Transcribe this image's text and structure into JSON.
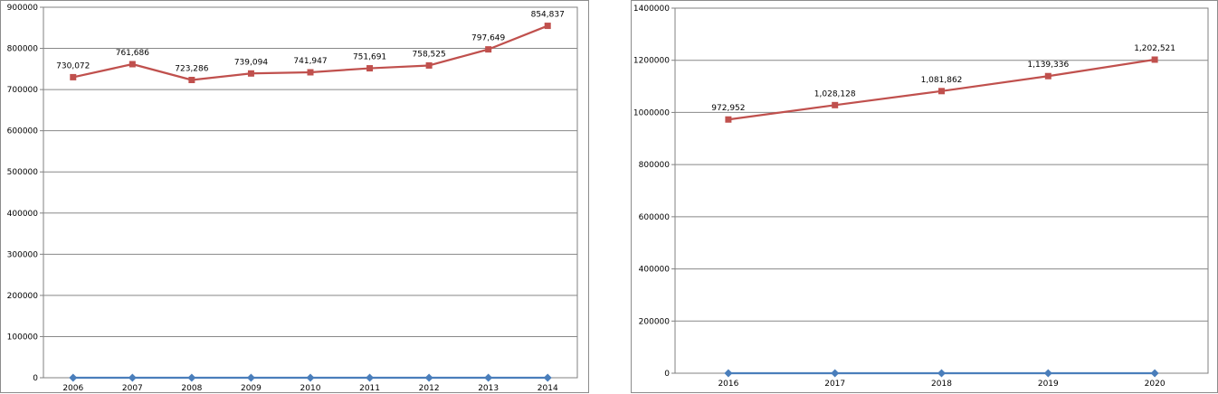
{
  "chart_data": [
    {
      "type": "line",
      "categories": [
        "2006",
        "2007",
        "2008",
        "2009",
        "2010",
        "2011",
        "2012",
        "2013",
        "2014"
      ],
      "ylim": [
        0,
        900000
      ],
      "yticks": [
        "0",
        "100000",
        "200000",
        "300000",
        "400000",
        "500000",
        "600000",
        "700000",
        "800000",
        "900000"
      ],
      "grid": true,
      "series": [
        {
          "color": "#c0504d",
          "marker": "square",
          "values": [
            730072,
            761686,
            723286,
            739094,
            741947,
            751691,
            758525,
            797649,
            854837
          ],
          "labels": [
            "730,072",
            "761,686",
            "723,286",
            "739,094",
            "741,947",
            "751,691",
            "758,525",
            "797,649",
            "854,837"
          ]
        },
        {
          "color": "#4a7ebb",
          "marker": "diamond",
          "values": [
            0,
            0,
            0,
            0,
            0,
            0,
            0,
            0,
            0
          ]
        }
      ]
    },
    {
      "type": "line",
      "categories": [
        "2016",
        "2017",
        "2018",
        "2019",
        "2020"
      ],
      "ylim": [
        0,
        1400000
      ],
      "yticks": [
        "0",
        "200000",
        "400000",
        "600000",
        "800000",
        "1000000",
        "1200000",
        "1400000"
      ],
      "grid": true,
      "series": [
        {
          "color": "#c0504d",
          "marker": "square",
          "values": [
            972952,
            1028128,
            1081862,
            1139336,
            1202521
          ],
          "labels": [
            "972,952",
            "1,028,128",
            "1,081,862",
            "1,139,336",
            "1,202,521"
          ]
        },
        {
          "color": "#4a7ebb",
          "marker": "diamond",
          "values": [
            0,
            0,
            0,
            0,
            0
          ]
        }
      ]
    }
  ]
}
